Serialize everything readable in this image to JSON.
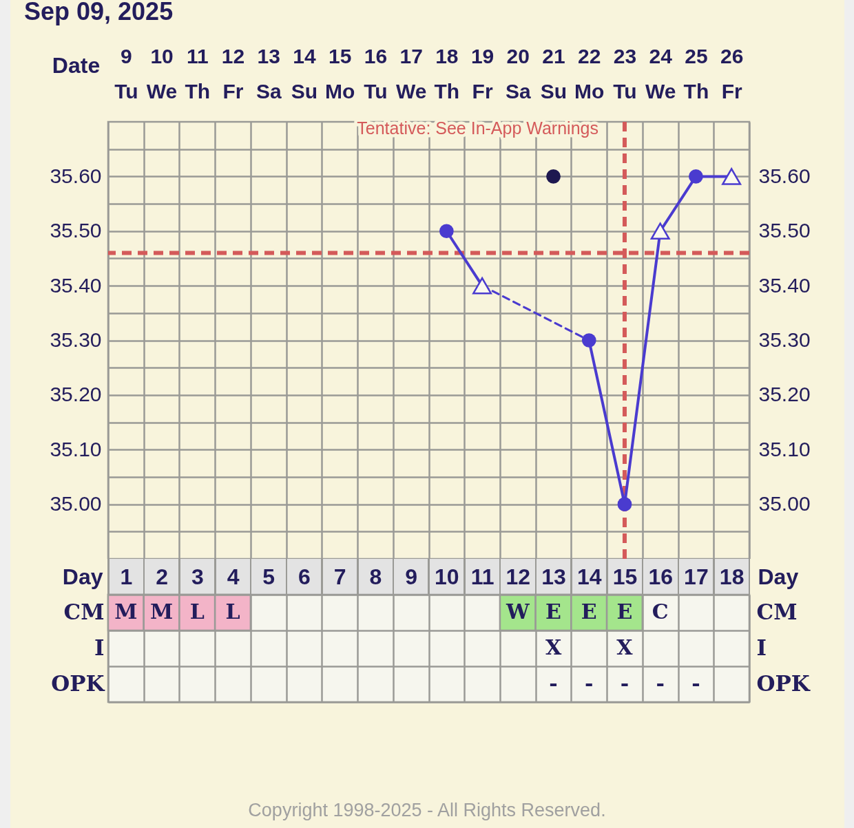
{
  "chart_data": [
    {
      "type": "line",
      "title": "Sep 09, 2025",
      "xlabel": "Date",
      "categories": [
        "9 Tu",
        "10 We",
        "11 Th",
        "12 Fr",
        "13 Sa",
        "14 Su",
        "15 Mo",
        "16 Tu",
        "17 We",
        "18 Th",
        "19 Fr",
        "20 Sa",
        "21 Su",
        "22 Mo",
        "23 Tu",
        "24 We",
        "25 Th",
        "26 Fr"
      ],
      "series": [
        {
          "type": "line",
          "color": "#4a3bcf",
          "marker": "none",
          "line_style": "solid",
          "x": [
            "18 Th",
            "19 Fr"
          ],
          "values": [
            35.5,
            35.4
          ]
        },
        {
          "type": "line",
          "color": "#4a3bcf",
          "marker": "none",
          "line_style": "dashed",
          "x": [
            "19 Fr",
            "22 Mo"
          ],
          "values": [
            35.4,
            35.3
          ]
        },
        {
          "type": "line",
          "color": "#4a3bcf",
          "marker": "none",
          "line_style": "solid",
          "x": [
            "22 Mo",
            "23 Tu",
            "24 We",
            "25 Th",
            "26 Fr"
          ],
          "values": [
            35.3,
            35.0,
            35.5,
            35.6,
            35.6
          ]
        },
        {
          "type": "scatter",
          "color": "#4a3bcf",
          "marker": "circle",
          "x": [
            "18 Th",
            "22 Mo",
            "23 Tu",
            "25 Th"
          ],
          "values": [
            35.5,
            35.3,
            35.0,
            35.6
          ]
        },
        {
          "type": "scatter",
          "color": "#4a3bcf",
          "marker": "triangle",
          "x": [
            "19 Fr",
            "24 We",
            "26 Fr"
          ],
          "values": [
            35.4,
            35.5,
            35.6
          ]
        },
        {
          "type": "scatter",
          "color": "#1e1850",
          "marker": "circle",
          "x": [
            "21 Su"
          ],
          "values": [
            35.6
          ]
        }
      ],
      "ylim": [
        34.9,
        35.7
      ],
      "yticks": [
        {
          "value": 34.95,
          "label": null
        },
        {
          "value": 35,
          "label": "35.00"
        },
        {
          "value": 35.05,
          "label": null
        },
        {
          "value": 35.1,
          "label": "35.10"
        },
        {
          "value": 35.15,
          "label": null
        },
        {
          "value": 35.2,
          "label": "35.20"
        },
        {
          "value": 35.25,
          "label": null
        },
        {
          "value": 35.3,
          "label": "35.30"
        },
        {
          "value": 35.35,
          "label": null
        },
        {
          "value": 35.4,
          "label": "35.40"
        },
        {
          "value": 35.45,
          "label": null
        },
        {
          "value": 35.5,
          "label": "35.50"
        },
        {
          "value": 35.55,
          "label": null
        },
        {
          "value": 35.6,
          "label": "35.60"
        },
        {
          "value": 35.65,
          "label": null
        }
      ],
      "y2lim": [
        34.9,
        35.7
      ],
      "y2ticks": [
        {
          "value": 34.95,
          "label": null
        },
        {
          "value": 35,
          "label": "35.00"
        },
        {
          "value": 35.05,
          "label": null
        },
        {
          "value": 35.1,
          "label": "35.10"
        },
        {
          "value": 35.15,
          "label": null
        },
        {
          "value": 35.2,
          "label": "35.20"
        },
        {
          "value": 35.25,
          "label": null
        },
        {
          "value": 35.3,
          "label": "35.30"
        },
        {
          "value": 35.35,
          "label": null
        },
        {
          "value": 35.4,
          "label": "35.40"
        },
        {
          "value": 35.45,
          "label": null
        },
        {
          "value": 35.5,
          "label": "35.50"
        },
        {
          "value": 35.55,
          "label": null
        },
        {
          "value": 35.6,
          "label": "35.60"
        },
        {
          "value": 35.65,
          "label": null
        }
      ],
      "grid": true,
      "ref_lines": [
        {
          "axis": "y",
          "value": 35.46,
          "color": "#d45a5a",
          "line_style": "dashed"
        },
        {
          "axis": "x",
          "value": "23 Tu",
          "label": "Tentative: See In-App Warnings",
          "color": "#d45a5a",
          "line_style": "dashed"
        }
      ]
    },
    {
      "type": "heatmap",
      "xlabel": "Day",
      "x": [
        1,
        2,
        3,
        4,
        5,
        6,
        7,
        8,
        9,
        10,
        11,
        12,
        13,
        14,
        15,
        16,
        17,
        18
      ],
      "xlim": [
        0.5,
        18.5
      ],
      "xticks": [
        1,
        2,
        3,
        4,
        5,
        6,
        7,
        8,
        9,
        10,
        11,
        12,
        13,
        14,
        15,
        16,
        17,
        18
      ],
      "y_categories": [
        "CM",
        "I",
        "OPK"
      ],
      "y2_categories": [
        "CM",
        "I",
        "OPK"
      ],
      "cells": [
        [
          null,
          null,
          null,
          null,
          null,
          null,
          null,
          null,
          null,
          null,
          null,
          null,
          null,
          null,
          null,
          null,
          null,
          null
        ],
        [
          null,
          null,
          null,
          null,
          null,
          null,
          null,
          null,
          null,
          null,
          null,
          null,
          null,
          null,
          null,
          null,
          null,
          null
        ],
        [
          null,
          null,
          null,
          null,
          null,
          null,
          null,
          null,
          null,
          null,
          null,
          null,
          null,
          null,
          null,
          null,
          null,
          null
        ]
      ],
      "cell_labels": [
        [
          "M",
          "M",
          "L",
          "L",
          null,
          null,
          null,
          null,
          null,
          null,
          null,
          "W",
          "E",
          "E",
          "E",
          "C",
          null,
          null
        ],
        [
          null,
          null,
          null,
          null,
          null,
          null,
          null,
          null,
          null,
          null,
          null,
          null,
          "X",
          null,
          "X",
          null,
          null,
          null
        ],
        [
          null,
          null,
          null,
          null,
          null,
          null,
          null,
          null,
          null,
          null,
          null,
          null,
          "-",
          "-",
          "-",
          "-",
          "-",
          null
        ]
      ],
      "colors": [
        [
          "#f3b4c8",
          "#f3b4c8",
          "#f3b4c8",
          "#f3b4c8",
          null,
          null,
          null,
          null,
          null,
          null,
          null,
          "#a4e58c",
          "#a4e58c",
          "#a4e58c",
          "#a4e58c",
          null,
          null,
          null
        ],
        [
          null,
          null,
          null,
          null,
          null,
          null,
          null,
          null,
          null,
          null,
          null,
          null,
          null,
          null,
          null,
          null,
          null,
          null
        ],
        [
          null,
          null,
          null,
          null,
          null,
          null,
          null,
          null,
          null,
          null,
          null,
          null,
          null,
          null,
          null,
          null,
          null,
          null
        ]
      ],
      "annotations": [
        "Copyright 1998-2025 - All Rights Reserved."
      ]
    }
  ]
}
